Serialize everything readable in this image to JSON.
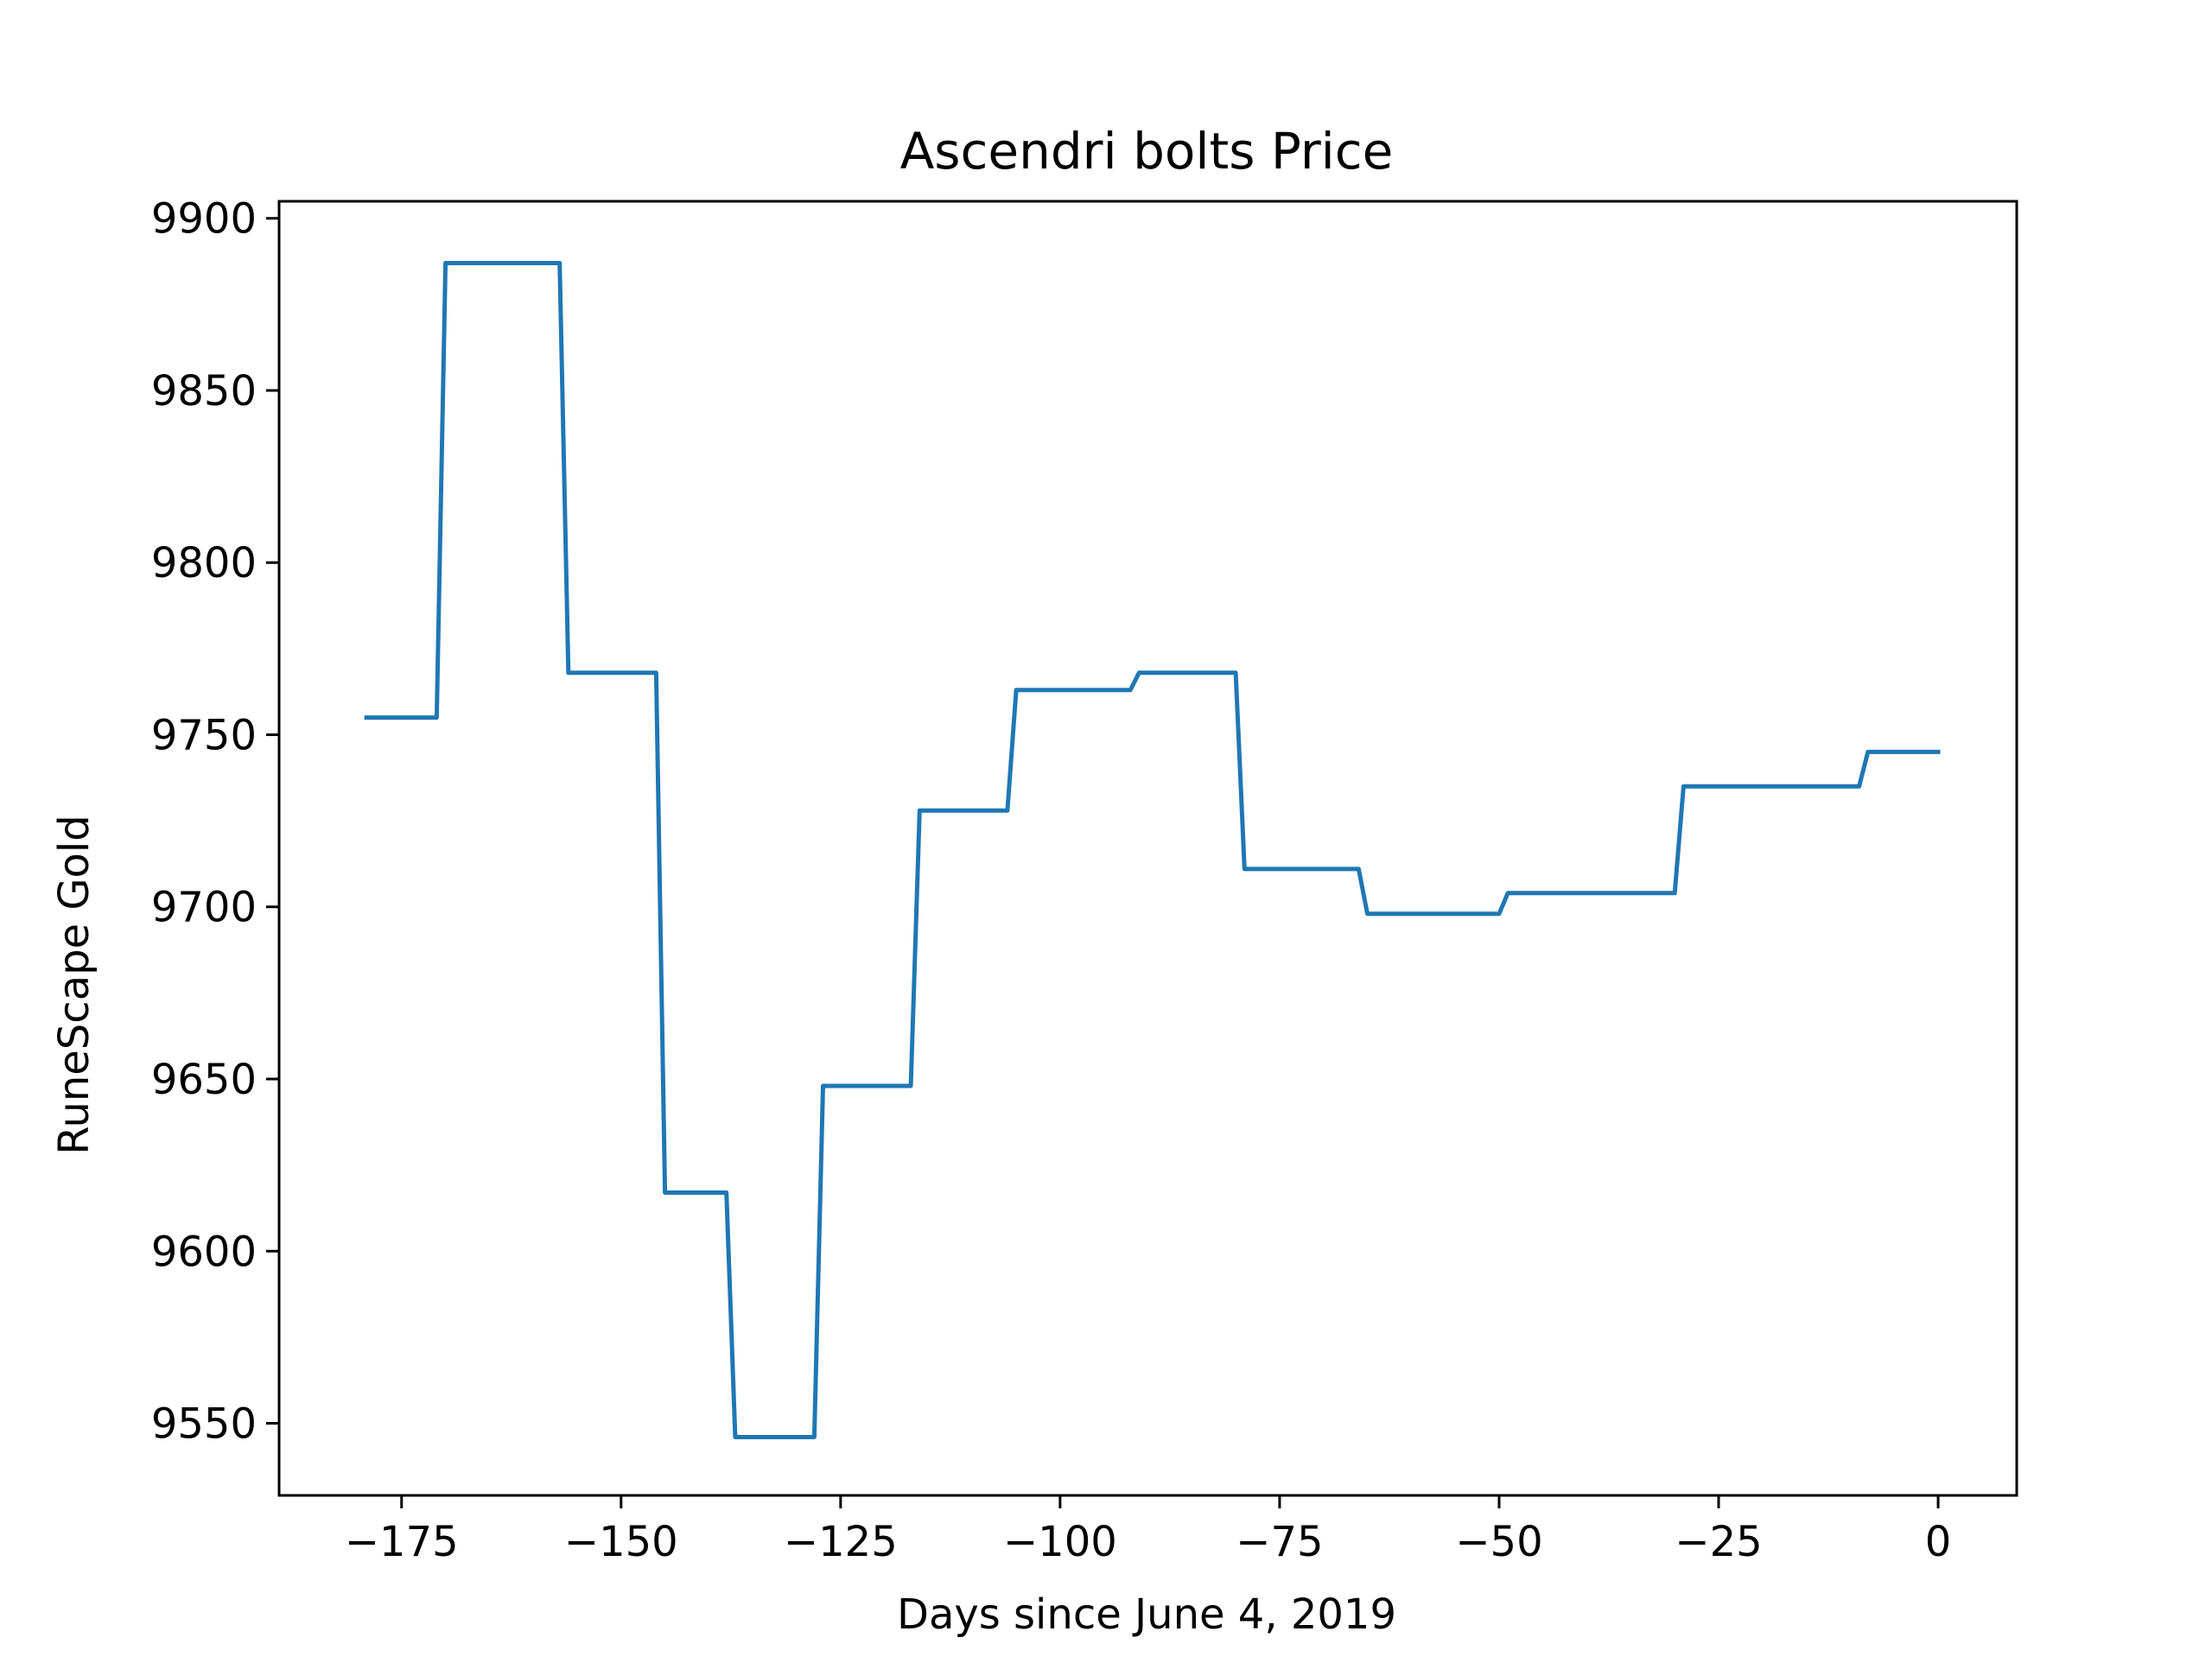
{
  "chart_data": {
    "type": "line",
    "title": "Ascendri bolts Price",
    "xlabel": "Days since June 4, 2019",
    "ylabel": "RuneScape Gold",
    "xlim": [
      -188.95,
      8.95
    ],
    "ylim": [
      9529.05,
      9904.95
    ],
    "x_ticks": [
      -175,
      -150,
      -125,
      -100,
      -75,
      -50,
      -25,
      0
    ],
    "x_tick_labels": [
      "−175",
      "−150",
      "−125",
      "−100",
      "−75",
      "−50",
      "−25",
      "0"
    ],
    "y_ticks": [
      9550,
      9600,
      9650,
      9700,
      9750,
      9800,
      9850,
      9900
    ],
    "y_tick_labels": [
      "9550",
      "9600",
      "9650",
      "9700",
      "9750",
      "9800",
      "9850",
      "9900"
    ],
    "grid": false,
    "line_color": "#1f77b4",
    "series": [
      {
        "x": [
          -179,
          -171,
          -170,
          -157,
          -156,
          -146,
          -145,
          -138,
          -137,
          -128,
          -127,
          -117,
          -116,
          -106,
          -105,
          -92,
          -91,
          -80,
          -79,
          -66,
          -65,
          -50,
          -49,
          -30,
          -29,
          -9,
          -8,
          0
        ],
        "y": [
          9755,
          9755,
          9887,
          9887,
          9768,
          9768,
          9617,
          9617,
          9546,
          9546,
          9648,
          9648,
          9728,
          9728,
          9763,
          9763,
          9768,
          9768,
          9711,
          9711,
          9698,
          9698,
          9704,
          9704,
          9735,
          9735,
          9745,
          9745
        ]
      }
    ]
  }
}
